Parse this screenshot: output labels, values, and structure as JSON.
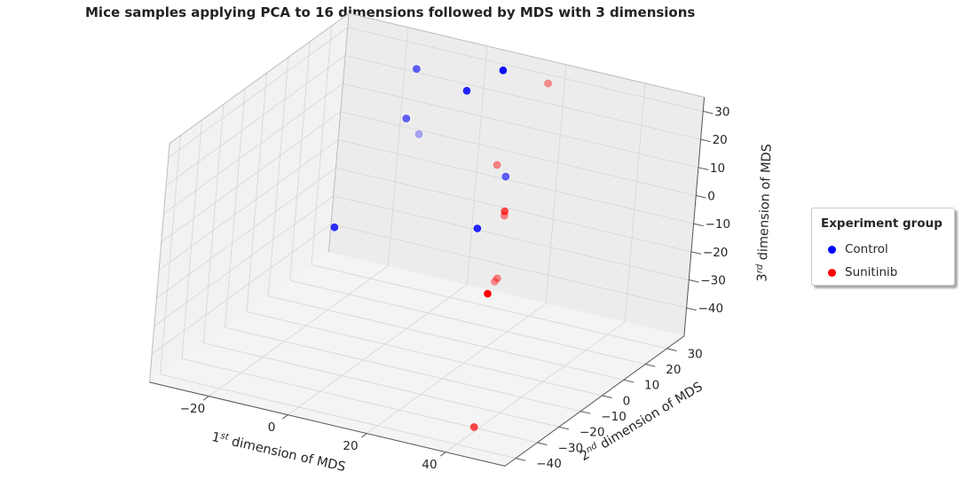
{
  "chart_data": {
    "type": "scatter",
    "projection": "3d",
    "title": "Mice samples applying PCA to 16 dimensions followed by MDS with 3 dimensions",
    "xlabel": {
      "prefix": "1",
      "sup": "st",
      "rest": " dimension of MDS"
    },
    "ylabel": {
      "prefix": "2",
      "sup": "nd",
      "rest": " dimension of MDS"
    },
    "zlabel": {
      "prefix": "3",
      "sup": "rd",
      "rest": " dimension of MDS"
    },
    "xlim": [
      -35,
      55
    ],
    "ylim": [
      -45,
      38
    ],
    "zlim": [
      -50,
      35
    ],
    "xticks": [
      -20,
      0,
      20,
      40
    ],
    "yticks": [
      -40,
      -30,
      -20,
      -10,
      0,
      10,
      20,
      30
    ],
    "zticks": [
      -40,
      -30,
      -20,
      -10,
      0,
      10,
      20,
      30
    ],
    "grid": true,
    "legend": {
      "title": "Experiment group",
      "placement": "right",
      "entries": [
        {
          "label": "Control",
          "color": "#0000ff"
        },
        {
          "label": "Sunitinib",
          "color": "#ff0000"
        }
      ]
    },
    "series": [
      {
        "name": "Control",
        "color": "#0000ff",
        "points": [
          {
            "x": 6,
            "y": 35,
            "z": 30,
            "alpha": 0.95
          },
          {
            "x": -13,
            "y": 30,
            "z": 27,
            "alpha": 0.6
          },
          {
            "x": 10,
            "y": 10,
            "z": 38,
            "alpha": 0.85
          },
          {
            "x": -13,
            "y": 27,
            "z": 11,
            "alpha": 0.6
          },
          {
            "x": -3,
            "y": 14,
            "z": 16,
            "alpha": 0.3
          },
          {
            "x": 17,
            "y": 7,
            "z": -7,
            "alpha": 0.85
          },
          {
            "x": 31,
            "y": -9,
            "z": 25,
            "alpha": 0.6
          },
          {
            "x": -21,
            "y": 12,
            "z": -22,
            "alpha": 0.8
          }
        ]
      },
      {
        "name": "Sunitinib",
        "color": "#ff0000",
        "points": [
          {
            "x": 11,
            "y": 26,
            "z": 3,
            "alpha": 0.45
          },
          {
            "x": 25,
            "y": 20,
            "z": 40,
            "alpha": 0.4
          },
          {
            "x": 33,
            "y": -12,
            "z": 15,
            "alpha": 0.7
          },
          {
            "x": 32,
            "y": -10,
            "z": 12,
            "alpha": 0.45
          },
          {
            "x": 27,
            "y": -1,
            "z": -17,
            "alpha": 0.45
          },
          {
            "x": 35,
            "y": -18,
            "z": -6,
            "alpha": 0.4
          },
          {
            "x": 32,
            "y": -15,
            "z": -13,
            "alpha": 1.0
          },
          {
            "x": 43,
            "y": -38,
            "z": -44,
            "alpha": 0.7
          }
        ]
      }
    ]
  }
}
